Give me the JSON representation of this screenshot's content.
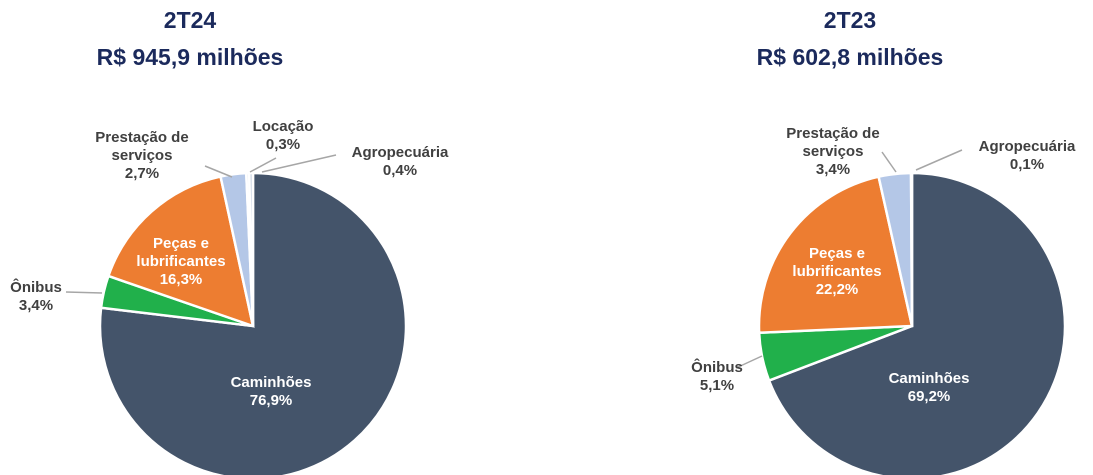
{
  "chart_data": [
    {
      "type": "pie",
      "title": "2T24",
      "subtitle": "R$ 945,9 milhões",
      "categories": [
        "Caminhões",
        "Ônibus",
        "Peças e lubrificantes",
        "Prestação de serviços",
        "Locação",
        "Agropecuária"
      ],
      "values": [
        76.9,
        3.4,
        16.3,
        2.7,
        0.3,
        0.4
      ],
      "value_labels": [
        "76,9%",
        "3,4%",
        "16,3%",
        "2,7%",
        "0,3%",
        "0,4%"
      ],
      "colors": [
        "#44546a",
        "#21b04b",
        "#ed7d31",
        "#b4c7e7",
        "#dfe5ef",
        "#cfd8e6"
      ]
    },
    {
      "type": "pie",
      "title": "2T23",
      "subtitle": "R$ 602,8 milhões",
      "categories": [
        "Caminhões",
        "Ônibus",
        "Peças e lubrificantes",
        "Prestação de serviços",
        "Agropecuária"
      ],
      "values": [
        69.2,
        5.1,
        22.2,
        3.4,
        0.1
      ],
      "value_labels": [
        "69,2%",
        "5,1%",
        "22,2%",
        "3,4%",
        "0,1%"
      ],
      "colors": [
        "#44546a",
        "#21b04b",
        "#ed7d31",
        "#b4c7e7",
        "#cfd8e6"
      ]
    }
  ]
}
